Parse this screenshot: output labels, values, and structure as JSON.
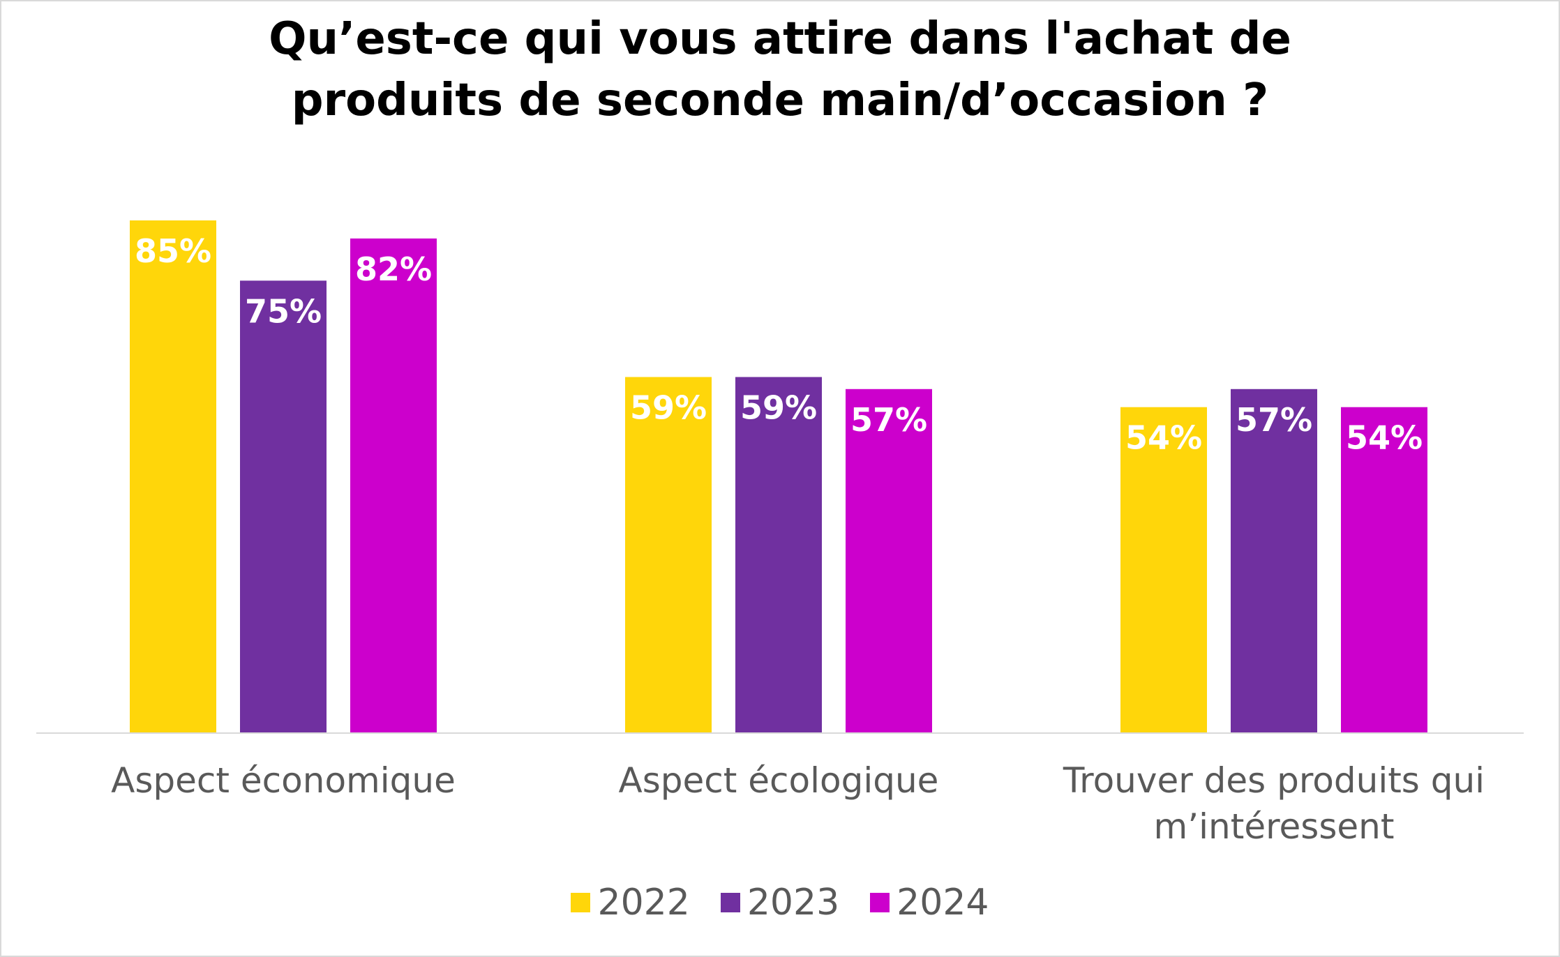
{
  "chart_data": {
    "type": "bar",
    "title_lines": [
      "Qu’est-ce qui vous attire dans l'achat de",
      "produits de seconde main/d’occasion ?"
    ],
    "categories": [
      [
        "Aspect économique"
      ],
      [
        "Aspect écologique"
      ],
      [
        "Trouver des produits qui",
        "m’intéressent"
      ]
    ],
    "series": [
      {
        "name": "2022",
        "color": "#FFD60A",
        "values": [
          85,
          59,
          54
        ]
      },
      {
        "name": "2023",
        "color": "#7030A0",
        "values": [
          75,
          59,
          57
        ]
      },
      {
        "name": "2024",
        "color": "#CC00CC",
        "values": [
          82,
          57,
          54
        ]
      }
    ],
    "value_suffix": "%",
    "ylim": [
      0,
      85
    ],
    "grid": false,
    "legend_position": "bottom",
    "data_label_color": "#FFFFFF",
    "axis_label_color": "#595959"
  }
}
